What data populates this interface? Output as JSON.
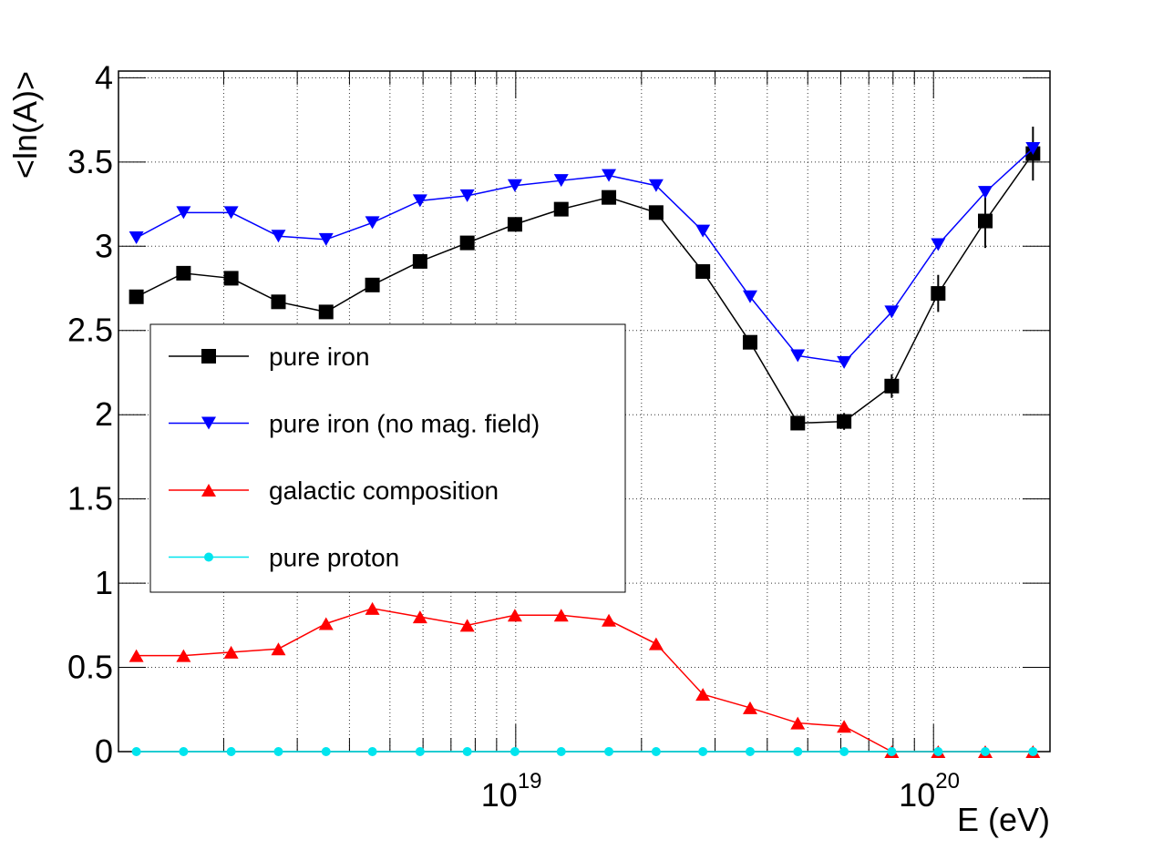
{
  "chart_data": {
    "type": "line",
    "xlabel": "E (eV)",
    "ylabel": "<ln(A)>",
    "xscale": "log",
    "grid": true,
    "legend": "upper-left",
    "xlim": [
      1.12e+18,
      1.9e+20
    ],
    "ylim": [
      0,
      4.04
    ],
    "xticks": [
      {
        "value": 1e+19,
        "label": "10",
        "exponent": "19"
      },
      {
        "value": 1e+20,
        "label": "10",
        "exponent": "20"
      }
    ],
    "xminorticks": [
      2e+18,
      3e+18,
      4e+18,
      5e+18,
      6e+18,
      7e+18,
      8e+18,
      9e+18,
      2e+19,
      3e+19,
      4e+19,
      5e+19,
      6e+19,
      7e+19,
      8e+19,
      9e+19
    ],
    "yticks": [
      0,
      0.5,
      1,
      1.5,
      2,
      2.5,
      3,
      3.5,
      4
    ],
    "x": [
      1.236e+18,
      1.603e+18,
      2.084e+18,
      2.704e+18,
      3.516e+18,
      4.539e+18,
      5.902e+18,
      7.656e+18,
      9.954e+18,
      1.285e+19,
      1.671e+19,
      2.168e+19,
      2.805e+19,
      3.639e+19,
      4.732e+19,
      6.109e+19,
      7.943e+19,
      1.026e+20,
      1.33e+20,
      1.73e+20
    ],
    "series": [
      {
        "name": "pure iron",
        "color": "#000000",
        "marker": "square",
        "values": [
          2.7,
          2.84,
          2.81,
          2.67,
          2.61,
          2.77,
          2.91,
          3.02,
          3.13,
          3.22,
          3.29,
          3.2,
          2.85,
          2.43,
          1.95,
          1.96,
          2.17,
          2.72,
          3.15,
          3.55
        ],
        "errors": [
          0.02,
          0.02,
          0.02,
          0.02,
          0.02,
          0.02,
          0.02,
          0.02,
          0.02,
          0.02,
          0.02,
          0.02,
          0.03,
          0.03,
          0.04,
          0.05,
          0.07,
          0.11,
          0.16,
          0.16
        ]
      },
      {
        "name": "pure iron (no mag. field)",
        "color": "#0000ff",
        "marker": "triangle-down",
        "values": [
          3.05,
          3.2,
          3.2,
          3.06,
          3.04,
          3.14,
          3.27,
          3.3,
          3.36,
          3.39,
          3.42,
          3.36,
          3.09,
          2.7,
          2.35,
          2.31,
          2.61,
          3.01,
          3.32,
          3.58
        ]
      },
      {
        "name": "galactic composition",
        "color": "#ff0000",
        "marker": "triangle-up",
        "values": [
          0.57,
          0.57,
          0.59,
          0.61,
          0.76,
          0.85,
          0.8,
          0.75,
          0.81,
          0.81,
          0.78,
          0.64,
          0.34,
          0.26,
          0.17,
          0.15,
          0,
          0,
          0,
          0
        ]
      },
      {
        "name": "pure proton",
        "color": "#00e5ee",
        "marker": "circle",
        "values": [
          0,
          0,
          0,
          0,
          0,
          0,
          0,
          0,
          0,
          0,
          0,
          0,
          0,
          0,
          0,
          0,
          0,
          0,
          0,
          0
        ]
      }
    ]
  }
}
